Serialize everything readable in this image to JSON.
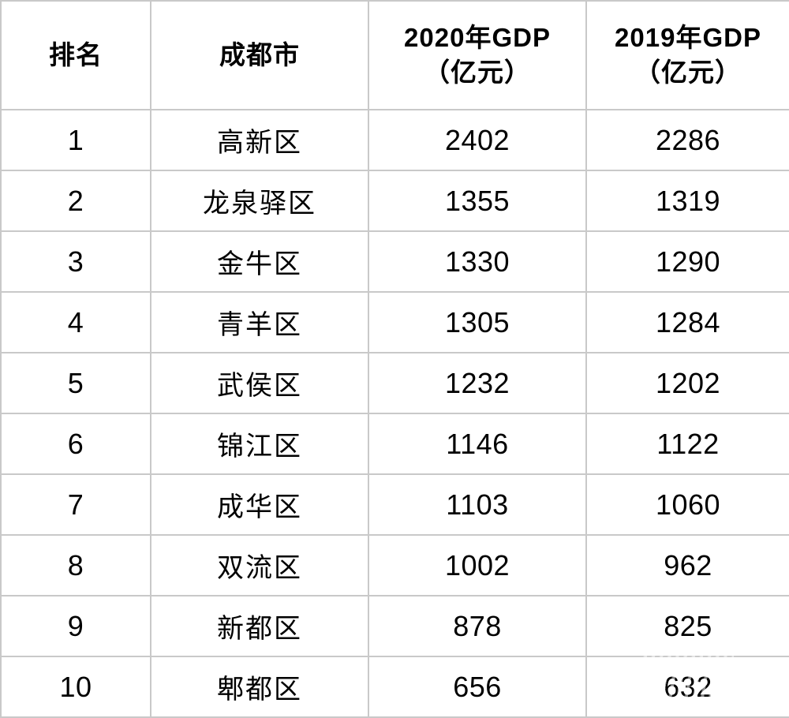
{
  "colors": {
    "background": "#ffffff",
    "grid_border": "#c9c9c9",
    "text": "#000000"
  },
  "table": {
    "headers": [
      {
        "line1": "排名",
        "line2": ""
      },
      {
        "line1": "成都市",
        "line2": ""
      },
      {
        "line1": "2020年GDP",
        "line2": "（亿元）"
      },
      {
        "line1": "2019年GDP",
        "line2": "（亿元）"
      }
    ]
  },
  "chart_data": {
    "type": "table",
    "columns": [
      "排名",
      "成都市",
      "2020年GDP（亿元）",
      "2019年GDP（亿元）"
    ],
    "rows": [
      [
        "1",
        "高新区",
        "2402",
        "2286"
      ],
      [
        "2",
        "龙泉驿区",
        "1355",
        "1319"
      ],
      [
        "3",
        "金牛区",
        "1330",
        "1290"
      ],
      [
        "4",
        "青羊区",
        "1305",
        "1284"
      ],
      [
        "5",
        "武侯区",
        "1232",
        "1202"
      ],
      [
        "6",
        "锦江区",
        "1146",
        "1122"
      ],
      [
        "7",
        "成华区",
        "1103",
        "1060"
      ],
      [
        "8",
        "双流区",
        "1002",
        "962"
      ],
      [
        "9",
        "新都区",
        "878",
        "825"
      ],
      [
        "10",
        "郫都区",
        "656",
        "632"
      ]
    ],
    "layout_hints": {
      "grid": true,
      "header_bold": true,
      "all_cells_centered": true
    }
  }
}
